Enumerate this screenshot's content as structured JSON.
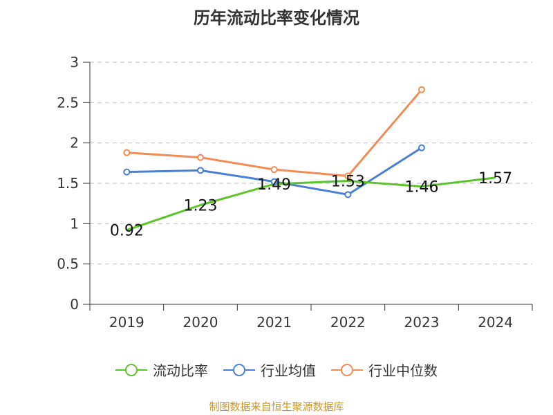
{
  "chart_data": {
    "type": "line",
    "title": "历年流动比率变化情况",
    "categories": [
      "2019",
      "2020",
      "2021",
      "2022",
      "2023",
      "2024"
    ],
    "ylim": [
      0,
      3
    ],
    "yticks": [
      "0",
      "0.5",
      "1",
      "1.5",
      "2",
      "2.5",
      "3"
    ],
    "grid": true,
    "legend_position": "bottom",
    "series": [
      {
        "name": "流动比率",
        "color": "#5cc42b",
        "values": [
          0.92,
          1.23,
          1.49,
          1.53,
          1.46,
          1.57
        ],
        "labels": [
          "0.92",
          "1.23",
          "1.49",
          "1.53",
          "1.46",
          "1.57"
        ]
      },
      {
        "name": "行业均值",
        "color": "#4a7fd8",
        "values": [
          1.64,
          1.66,
          1.52,
          1.36,
          1.94,
          null
        ]
      },
      {
        "name": "行业中位数",
        "color": "#f28c55",
        "values": [
          1.88,
          1.82,
          1.67,
          1.59,
          2.66,
          null
        ]
      }
    ]
  },
  "source": {
    "text": "制图数据来自恒生聚源数据库",
    "color": "#c8962a"
  }
}
